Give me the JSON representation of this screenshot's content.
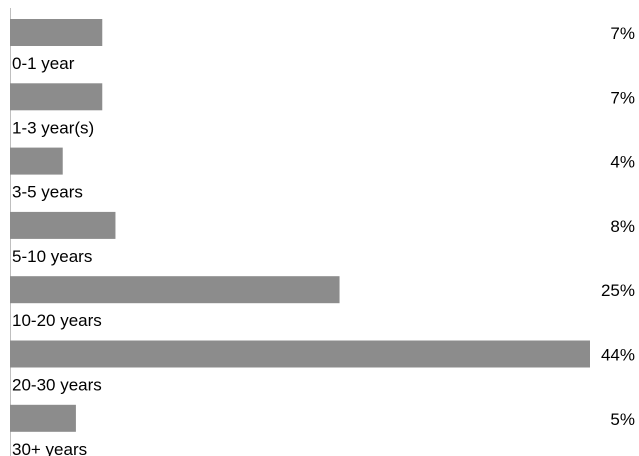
{
  "chart_data": {
    "type": "bar",
    "orientation": "horizontal",
    "categories": [
      "0-1 year",
      "1-3 year(s)",
      "3-5 years",
      "5-10 years",
      "10-20 years",
      "20-30 years",
      "30+ years"
    ],
    "values": [
      7,
      7,
      4,
      8,
      25,
      44,
      5
    ],
    "value_labels": [
      "7%",
      "7%",
      "4%",
      "8%",
      "25%",
      "44%",
      "5%"
    ],
    "unit": "%",
    "xlim": [
      0,
      44
    ],
    "grid": false,
    "legend": "none",
    "bar_color": "#8c8c8c",
    "axis_color": "#bfbfbf",
    "title": "",
    "xlabel": "",
    "ylabel": ""
  }
}
